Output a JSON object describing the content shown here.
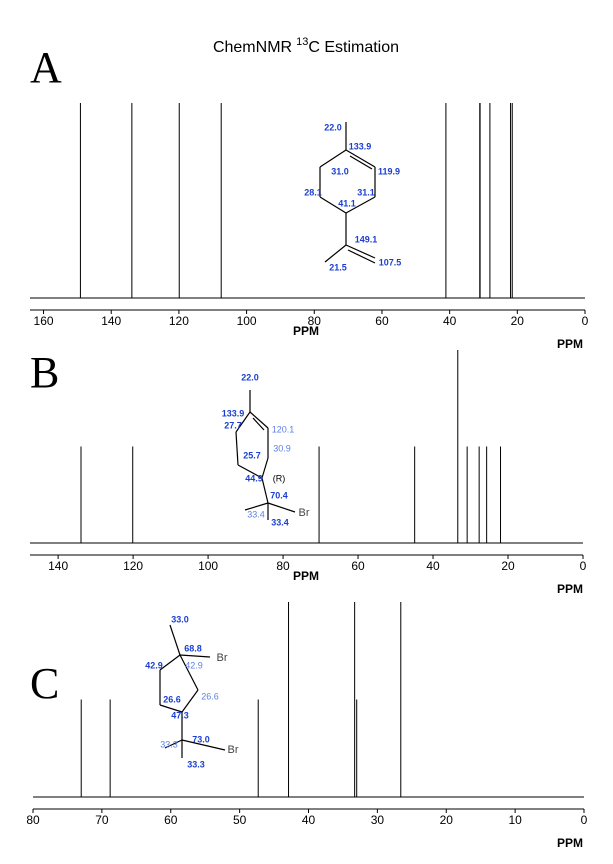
{
  "title": {
    "text": "ChemNMR",
    "superscript": "13",
    "text_after": "C Estimation"
  },
  "chart_data": [
    {
      "type": "stem",
      "label": "A",
      "x": [
        149.1,
        133.9,
        119.9,
        107.5,
        41.1,
        31.1,
        31.0,
        28.1,
        22.0,
        21.5
      ],
      "values": [
        100,
        100,
        100,
        100,
        100,
        100,
        100,
        100,
        100,
        100
      ],
      "xlim": [
        164,
        0
      ],
      "ylim": [
        0,
        100
      ],
      "xticks": [
        160,
        140,
        120,
        100,
        80,
        60,
        40,
        20,
        0
      ],
      "xlabel": "PPM",
      "xlabel_right": "PPM",
      "color": "#000000",
      "structure_labels": [
        "22.0",
        "133.9",
        "31.0",
        "119.9",
        "28.1",
        "31.1",
        "41.1",
        "149.1",
        "21.5",
        "107.5"
      ]
    },
    {
      "type": "stem",
      "label": "B",
      "x": [
        133.9,
        120.1,
        70.4,
        44.9,
        33.4,
        30.9,
        27.7,
        25.7,
        22.0
      ],
      "values": [
        50,
        50,
        50,
        50,
        100,
        50,
        50,
        50,
        50
      ],
      "xlim": [
        147.5,
        0
      ],
      "ylim": [
        0,
        100
      ],
      "xticks": [
        140,
        120,
        100,
        80,
        60,
        40,
        20,
        0
      ],
      "xlabel": "PPM",
      "xlabel_right": "PPM",
      "color": "#000000",
      "structure_labels": [
        "22.0",
        "133.9",
        "27.7",
        "120.1",
        "30.9",
        "25.7",
        "44.9",
        "(R)",
        "70.4",
        "33.4",
        "Br",
        "33.4"
      ]
    },
    {
      "type": "stem",
      "label": "C",
      "x": [
        73.0,
        68.8,
        47.3,
        42.9,
        33.3,
        33.0,
        26.6
      ],
      "values": [
        50,
        50,
        50,
        100,
        100,
        50,
        100
      ],
      "xlim": [
        80,
        0
      ],
      "ylim": [
        0,
        100
      ],
      "xticks": [
        80,
        70,
        60,
        50,
        40,
        30,
        20,
        10,
        0
      ],
      "xlabel_right": "PPM",
      "color": "#000000",
      "structure_labels": [
        "33.0",
        "68.8",
        "Br",
        "42.9",
        "42.9",
        "26.6",
        "26.6",
        "47.3",
        "73.0",
        "33.3",
        "Br",
        "33.3"
      ]
    }
  ]
}
